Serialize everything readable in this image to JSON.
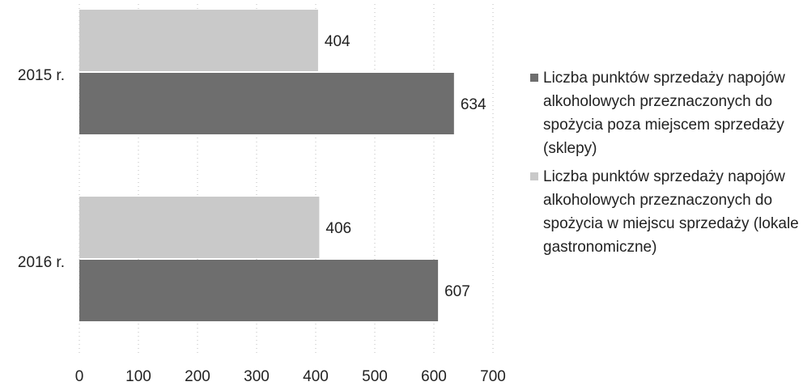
{
  "chart_data": {
    "type": "bar",
    "orientation": "horizontal",
    "categories": [
      "2015 r.",
      "2016 r."
    ],
    "series": [
      {
        "name": "Liczba punktów sprzedaży napojów alkoholowych przeznaczonych do spożycia poza miejscem sprzedaży (sklepy)",
        "color": "#6e6e6e",
        "values": [
          634,
          607
        ]
      },
      {
        "name": "Liczba punktów sprzedaży napojów alkoholowych przeznaczonych do spożycia w miejscu sprzedaży (lokale gastronomiczne)",
        "color": "#c9c9c9",
        "values": [
          404,
          406
        ]
      }
    ],
    "xlim": [
      0,
      700
    ],
    "xticks": [
      0,
      100,
      200,
      300,
      400,
      500,
      600,
      700
    ],
    "grid": true,
    "legend": "right"
  }
}
